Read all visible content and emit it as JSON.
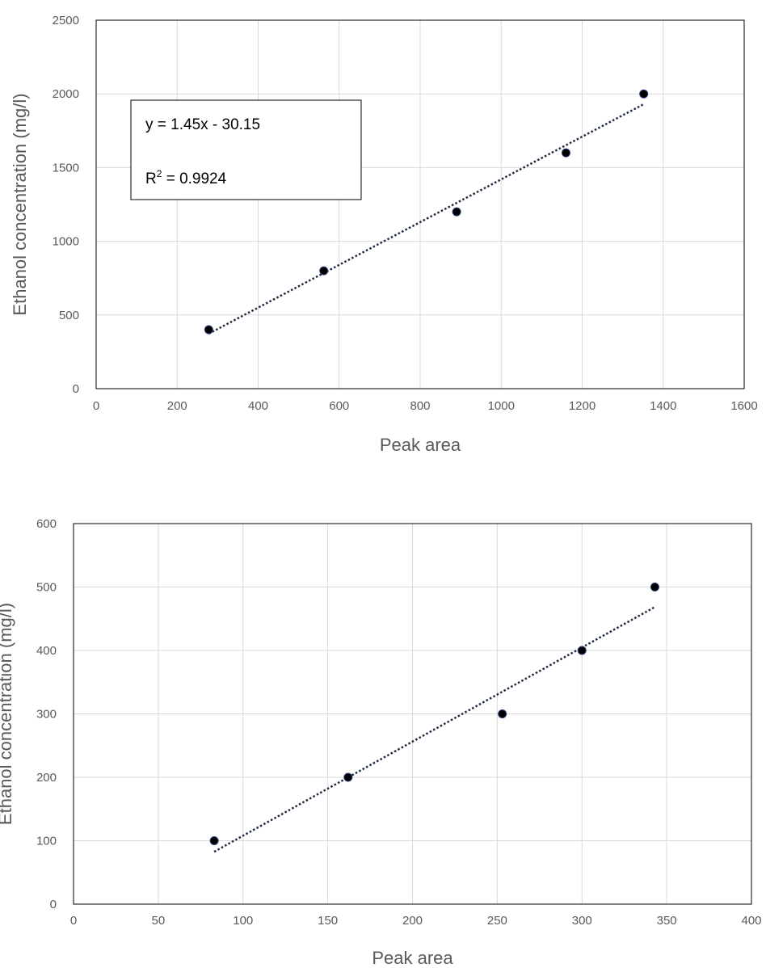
{
  "chart_data": [
    {
      "type": "scatter",
      "xlabel": "Peak area",
      "ylabel": "Ethanol concentration (mg/l)",
      "xlim": [
        0,
        1600
      ],
      "ylim": [
        0,
        2500
      ],
      "xticks": [
        0,
        200,
        400,
        600,
        800,
        1000,
        1200,
        1400,
        1600
      ],
      "yticks": [
        0,
        500,
        1000,
        1500,
        2000,
        2500
      ],
      "grid": true,
      "series": [
        {
          "points": [
            {
              "x": 278,
              "y": 400
            },
            {
              "x": 562,
              "y": 800
            },
            {
              "x": 890,
              "y": 1200
            },
            {
              "x": 1160,
              "y": 1600
            },
            {
              "x": 1352,
              "y": 2000
            }
          ],
          "trendline": {
            "slope": 1.45,
            "intercept": -30.15,
            "x_range": [
              278,
              1352
            ]
          }
        }
      ],
      "annotations": {
        "equation": "y = 1.45x - 30.15",
        "r2_prefix": "R",
        "r2_sup": "2",
        "r2_value": " = 0.9924"
      },
      "colors": {
        "marker": "#000000",
        "trendline": "#1f2a44",
        "grid": "#d9d9d9"
      }
    },
    {
      "type": "scatter",
      "xlabel": "Peak area",
      "ylabel": "Ethanol concentration (mg/l)",
      "xlim": [
        0,
        400
      ],
      "ylim": [
        0,
        600
      ],
      "xticks": [
        0,
        50,
        100,
        150,
        200,
        250,
        300,
        350,
        400
      ],
      "yticks": [
        0,
        100,
        200,
        300,
        400,
        500,
        600
      ],
      "grid": true,
      "series": [
        {
          "points": [
            {
              "x": 83,
              "y": 100
            },
            {
              "x": 162,
              "y": 200
            },
            {
              "x": 253,
              "y": 300
            },
            {
              "x": 300,
              "y": 400
            },
            {
              "x": 343,
              "y": 500
            }
          ],
          "trendline": {
            "slope": 1.484,
            "intercept": -40.5,
            "x_range": [
              83,
              343
            ]
          }
        }
      ],
      "colors": {
        "marker": "#000000",
        "trendline": "#1f2a44",
        "grid": "#d9d9d9"
      }
    }
  ]
}
